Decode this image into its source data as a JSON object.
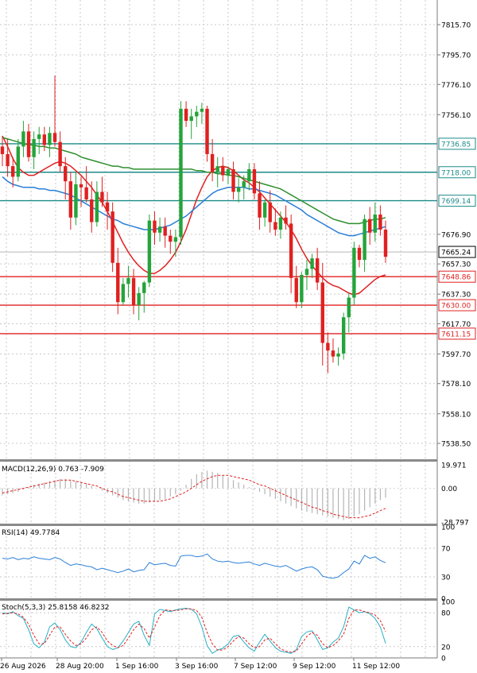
{
  "chart_data": [
    {
      "type": "candlestick",
      "panel": "price",
      "yticks": [
        "7815.70",
        "7795.70",
        "7776.10",
        "7756.10",
        "7676.90",
        "7657.30",
        "7637.30",
        "7617.70",
        "7597.70",
        "7578.10",
        "7558.10",
        "7538.50"
      ],
      "ylim": [
        7528,
        7832
      ],
      "grid": true,
      "price_labels": [
        {
          "value": 7736.85,
          "text": "7736.85",
          "color": "#1d8a8a"
        },
        {
          "value": 7718.0,
          "text": "7718.00",
          "color": "#1d8a8a"
        },
        {
          "value": 7699.14,
          "text": "7699.14",
          "color": "#1d8a8a"
        },
        {
          "value": 7665.24,
          "text": "7665.24",
          "color": "#000000"
        },
        {
          "value": 7648.86,
          "text": "7648.86",
          "color": "#e02020"
        },
        {
          "value": 7630.0,
          "text": "7630.00",
          "color": "#e02020"
        },
        {
          "value": 7611.15,
          "text": "7611.15",
          "color": "#e02020"
        }
      ],
      "hlines": [
        {
          "value": 7736.85,
          "color": "#1d8a8a"
        },
        {
          "value": 7718.0,
          "color": "#1d8a8a"
        },
        {
          "value": 7699.14,
          "color": "#1d8a8a"
        },
        {
          "value": 7648.86,
          "color": "#e02020"
        },
        {
          "value": 7630.0,
          "color": "#e02020"
        },
        {
          "value": 7611.15,
          "color": "#e02020"
        }
      ],
      "current_price": 7665.24,
      "candles": [
        [
          7735,
          7742,
          7722,
          7730
        ],
        [
          7730,
          7740,
          7715,
          7722
        ],
        [
          7722,
          7728,
          7708,
          7715
        ],
        [
          7715,
          7740,
          7712,
          7735
        ],
        [
          7735,
          7752,
          7728,
          7745
        ],
        [
          7745,
          7750,
          7725,
          7728
        ],
        [
          7728,
          7745,
          7720,
          7740
        ],
        [
          7740,
          7748,
          7730,
          7743
        ],
        [
          7743,
          7748,
          7732,
          7736
        ],
        [
          7736,
          7748,
          7728,
          7744
        ],
        [
          7744,
          7782,
          7735,
          7738
        ],
        [
          7738,
          7745,
          7718,
          7722
        ],
        [
          7722,
          7728,
          7700,
          7712
        ],
        [
          7712,
          7718,
          7680,
          7688
        ],
        [
          7688,
          7718,
          7683,
          7710
        ],
        [
          7710,
          7715,
          7695,
          7708
        ],
        [
          7708,
          7722,
          7698,
          7700
        ],
        [
          7700,
          7712,
          7678,
          7685
        ],
        [
          7685,
          7712,
          7682,
          7705
        ],
        [
          7705,
          7715,
          7695,
          7698
        ],
        [
          7698,
          7705,
          7680,
          7692
        ],
        [
          7692,
          7698,
          7652,
          7658
        ],
        [
          7658,
          7668,
          7624,
          7632
        ],
        [
          7632,
          7648,
          7630,
          7644
        ],
        [
          7644,
          7656,
          7635,
          7648
        ],
        [
          7648,
          7654,
          7624,
          7630
        ],
        [
          7630,
          7642,
          7620,
          7638
        ],
        [
          7638,
          7646,
          7625,
          7645
        ],
        [
          7645,
          7690,
          7642,
          7686
        ],
        [
          7686,
          7692,
          7670,
          7678
        ],
        [
          7678,
          7688,
          7672,
          7682
        ],
        [
          7682,
          7688,
          7668,
          7676
        ],
        [
          7676,
          7680,
          7664,
          7672
        ],
        [
          7672,
          7680,
          7662,
          7675
        ],
        [
          7675,
          7765,
          7670,
          7760
        ],
        [
          7760,
          7765,
          7748,
          7752
        ],
        [
          7752,
          7760,
          7740,
          7755
        ],
        [
          7755,
          7762,
          7748,
          7758
        ],
        [
          7758,
          7764,
          7750,
          7760
        ],
        [
          7760,
          7762,
          7725,
          7730
        ],
        [
          7730,
          7740,
          7712,
          7718
        ],
        [
          7718,
          7728,
          7708,
          7722
        ],
        [
          7722,
          7728,
          7712,
          7716
        ],
        [
          7716,
          7722,
          7710,
          7720
        ],
        [
          7720,
          7725,
          7700,
          7705
        ],
        [
          7705,
          7714,
          7698,
          7708
        ],
        [
          7708,
          7716,
          7700,
          7712
        ],
        [
          7712,
          7724,
          7706,
          7720
        ],
        [
          7720,
          7724,
          7700,
          7704
        ],
        [
          7704,
          7712,
          7680,
          7688
        ],
        [
          7688,
          7700,
          7682,
          7698
        ],
        [
          7698,
          7706,
          7678,
          7685
        ],
        [
          7685,
          7694,
          7676,
          7680
        ],
        [
          7680,
          7692,
          7674,
          7688
        ],
        [
          7688,
          7696,
          7680,
          7684
        ],
        [
          7684,
          7690,
          7638,
          7648
        ],
        [
          7648,
          7656,
          7628,
          7632
        ],
        [
          7632,
          7652,
          7628,
          7650
        ],
        [
          7650,
          7660,
          7640,
          7654
        ],
        [
          7654,
          7664,
          7648,
          7661
        ],
        [
          7661,
          7668,
          7640,
          7645
        ],
        [
          7645,
          7658,
          7590,
          7605
        ],
        [
          7605,
          7612,
          7585,
          7600
        ],
        [
          7600,
          7608,
          7592,
          7596
        ],
        [
          7596,
          7602,
          7590,
          7598
        ],
        [
          7598,
          7625,
          7594,
          7622
        ],
        [
          7622,
          7638,
          7612,
          7635
        ],
        [
          7635,
          7672,
          7630,
          7668
        ],
        [
          7668,
          7670,
          7655,
          7660
        ],
        [
          7660,
          7690,
          7652,
          7687
        ],
        [
          7687,
          7695,
          7670,
          7678
        ],
        [
          7678,
          7698,
          7672,
          7690
        ],
        [
          7690,
          7696,
          7676,
          7680
        ],
        [
          7680,
          7686,
          7658,
          7662
        ]
      ],
      "series": [
        {
          "color": "#e02020",
          "values": [
            7742,
            7735,
            7727,
            7721,
            7718,
            7716,
            7716,
            7718,
            7720,
            7722,
            7724,
            7725,
            7724,
            7722,
            7719,
            7716,
            7712,
            7708,
            7703,
            7698,
            7692,
            7685,
            7678,
            7671,
            7665,
            7660,
            7656,
            7653,
            7651,
            7651,
            7653,
            7656,
            7660,
            7665,
            7672,
            7680,
            7690,
            7700,
            7708,
            7715,
            7719,
            7721,
            7722,
            7721,
            7719,
            7716,
            7713,
            7711,
            7708,
            7705,
            7701,
            7697,
            7693,
            7689,
            7685,
            7680,
            7674,
            7667,
            7661,
            7656,
            7652,
            7648,
            7645,
            7643,
            7642,
            7640,
            7638,
            7637,
            7638,
            7641,
            7644,
            7647,
            7649,
            7650
          ]
        },
        {
          "color": "#2a7fd8",
          "values": [
            7715,
            7712,
            7710,
            7709,
            7708,
            7708,
            7708,
            7707,
            7707,
            7706,
            7706,
            7705,
            7704,
            7703,
            7701,
            7699,
            7697,
            7695,
            7693,
            7691,
            7689,
            7687,
            7686,
            7684,
            7683,
            7682,
            7681,
            7680,
            7680,
            7680,
            7681,
            7682,
            7683,
            7685,
            7687,
            7689,
            7692,
            7695,
            7698,
            7701,
            7704,
            7706,
            7707,
            7708,
            7708,
            7708,
            7708,
            7707,
            7707,
            7706,
            7705,
            7704,
            7703,
            7701,
            7699,
            7697,
            7695,
            7693,
            7690,
            7688,
            7686,
            7684,
            7682,
            7680,
            7678,
            7677,
            7676,
            7676,
            7677,
            7678,
            7679,
            7680,
            7681,
            7682
          ]
        },
        {
          "color": "#2e8f2e",
          "values": [
            7741,
            7740,
            7739,
            7738,
            7737,
            7736,
            7736,
            7735,
            7735,
            7734,
            7734,
            7733,
            7732,
            7731,
            7730,
            7728,
            7727,
            7726,
            7725,
            7724,
            7723,
            7722,
            7722,
            7721,
            7721,
            7720,
            7720,
            7720,
            7720,
            7720,
            7720,
            7720,
            7720,
            7720,
            7720,
            7720,
            7720,
            7719,
            7719,
            7718,
            7718,
            7717,
            7717,
            7716,
            7716,
            7715,
            7714,
            7713,
            7712,
            7711,
            7710,
            7709,
            7708,
            7707,
            7705,
            7703,
            7701,
            7699,
            7697,
            7695,
            7693,
            7691,
            7689,
            7687,
            7686,
            7685,
            7684,
            7684,
            7684,
            7685,
            7686,
            7687,
            7687,
            7688
          ]
        }
      ]
    },
    {
      "type": "histogram",
      "panel": "macd",
      "label": "MACD(12,26,9) 0.763 -7.909",
      "yticks": [
        "19.971",
        "0.00",
        "-28.797"
      ],
      "ylim": [
        -30,
        22
      ],
      "histogram": [
        -6,
        -5,
        -4,
        -3,
        -1,
        1,
        3,
        4,
        5,
        6,
        7,
        8,
        8,
        7,
        6,
        5,
        4,
        2,
        0,
        -2,
        -4,
        -6,
        -8,
        -10,
        -11,
        -12,
        -13,
        -13,
        -12,
        -11,
        -10,
        -9,
        -7,
        -5,
        -2,
        3,
        8,
        12,
        14,
        15,
        14,
        13,
        11,
        9,
        7,
        5,
        3,
        1,
        -1,
        -3,
        -5,
        -7,
        -9,
        -11,
        -13,
        -15,
        -17,
        -19,
        -20,
        -21,
        -22,
        -23,
        -24,
        -25,
        -26,
        -27,
        -26,
        -24,
        -22,
        -19,
        -16,
        -13,
        -10,
        -8
      ],
      "signal": [
        -4,
        -3,
        -2,
        -1,
        0,
        1,
        2,
        3,
        4,
        5,
        6,
        7,
        7,
        7,
        6,
        5,
        4,
        3,
        2,
        0,
        -2,
        -3,
        -5,
        -7,
        -8,
        -9,
        -10,
        -11,
        -11,
        -11,
        -11,
        -10,
        -9,
        -7,
        -5,
        -3,
        0,
        3,
        6,
        8,
        10,
        11,
        11,
        11,
        10,
        9,
        8,
        7,
        5,
        3,
        2,
        0,
        -2,
        -4,
        -6,
        -8,
        -10,
        -12,
        -14,
        -16,
        -17,
        -19,
        -20,
        -22,
        -23,
        -24,
        -25,
        -25,
        -25,
        -24,
        -23,
        -21,
        -19,
        -17
      ],
      "colors": {
        "histogram": "#b5b5b5",
        "signal": "#e02020"
      }
    },
    {
      "type": "line",
      "panel": "rsi",
      "label": "RSI(14) 49.7784",
      "yticks": [
        "100",
        "70",
        "30",
        "0"
      ],
      "ylim": [
        0,
        100
      ],
      "values": [
        56,
        55,
        57,
        54,
        56,
        55,
        58,
        56,
        55,
        54,
        57,
        55,
        50,
        46,
        48,
        47,
        45,
        44,
        40,
        42,
        40,
        38,
        36,
        38,
        41,
        37,
        39,
        40,
        50,
        47,
        48,
        49,
        46,
        45,
        59,
        60,
        60,
        58,
        59,
        62,
        55,
        52,
        51,
        52,
        50,
        49,
        50,
        51,
        48,
        46,
        49,
        47,
        45,
        44,
        46,
        42,
        38,
        41,
        43,
        44,
        40,
        31,
        29,
        28,
        30,
        36,
        41,
        52,
        48,
        60,
        56,
        58,
        53,
        49.78
      ],
      "color": "#2a7fd8"
    },
    {
      "type": "line",
      "panel": "stochastic",
      "label": "Stoch(5,3,3) 25.8158 46.8232",
      "yticks": [
        "100",
        "80",
        "20",
        "0"
      ],
      "ylim": [
        0,
        100
      ],
      "series": [
        {
          "values": [
            80,
            78,
            82,
            75,
            70,
            50,
            25,
            18,
            28,
            55,
            62,
            50,
            32,
            20,
            18,
            28,
            45,
            60,
            52,
            35,
            20,
            15,
            18,
            30,
            45,
            60,
            65,
            40,
            22,
            78,
            86,
            84,
            82,
            85,
            87,
            88,
            86,
            78,
            55,
            22,
            8,
            14,
            17,
            25,
            38,
            40,
            28,
            18,
            12,
            28,
            42,
            30,
            18,
            12,
            10,
            8,
            15,
            38,
            46,
            48,
            32,
            15,
            18,
            28,
            35,
            55,
            90,
            85,
            80,
            82,
            78,
            70,
            55,
            25.8
          ],
          "color": "#2ab0c5"
        },
        {
          "values": [
            78,
            79,
            80,
            78,
            72,
            60,
            40,
            25,
            25,
            40,
            55,
            55,
            42,
            30,
            22,
            25,
            35,
            50,
            55,
            45,
            30,
            22,
            18,
            22,
            35,
            50,
            60,
            52,
            35,
            55,
            75,
            85,
            84,
            84,
            85,
            87,
            87,
            84,
            72,
            45,
            25,
            14,
            14,
            20,
            30,
            38,
            35,
            25,
            18,
            20,
            32,
            35,
            25,
            16,
            12,
            10,
            12,
            25,
            38,
            45,
            40,
            25,
            18,
            22,
            30,
            42,
            70,
            85,
            85,
            82,
            80,
            76,
            66,
            46.8
          ],
          "color": "#e02020"
        }
      ]
    },
    {
      "type": "axis",
      "panel": "x",
      "xticks": [
        "26 Aug 2026",
        "28 Aug 20:00",
        "1 Sep 16:00",
        "3 Sep 16:00",
        "7 Sep 12:00",
        "9 Sep 12:00",
        "11 Sep 12:00"
      ]
    }
  ]
}
